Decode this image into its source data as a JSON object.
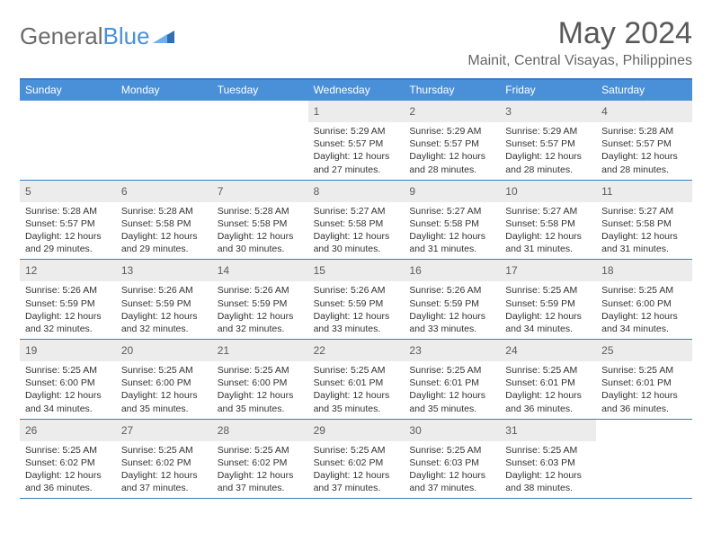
{
  "brand": {
    "part1": "General",
    "part2": "Blue"
  },
  "title": "May 2024",
  "location": "Mainit, Central Visayas, Philippines",
  "colors": {
    "header_bg": "#4a90d9",
    "header_border": "#3b7fbf",
    "daynum_bg": "#ececec",
    "title_color": "#595959",
    "text_color": "#333333"
  },
  "weekdays": [
    "Sunday",
    "Monday",
    "Tuesday",
    "Wednesday",
    "Thursday",
    "Friday",
    "Saturday"
  ],
  "weeks": [
    [
      {
        "n": "",
        "sunrise": "",
        "sunset": "",
        "daylight": ""
      },
      {
        "n": "",
        "sunrise": "",
        "sunset": "",
        "daylight": ""
      },
      {
        "n": "",
        "sunrise": "",
        "sunset": "",
        "daylight": ""
      },
      {
        "n": "1",
        "sunrise": "Sunrise: 5:29 AM",
        "sunset": "Sunset: 5:57 PM",
        "daylight": "Daylight: 12 hours and 27 minutes."
      },
      {
        "n": "2",
        "sunrise": "Sunrise: 5:29 AM",
        "sunset": "Sunset: 5:57 PM",
        "daylight": "Daylight: 12 hours and 28 minutes."
      },
      {
        "n": "3",
        "sunrise": "Sunrise: 5:29 AM",
        "sunset": "Sunset: 5:57 PM",
        "daylight": "Daylight: 12 hours and 28 minutes."
      },
      {
        "n": "4",
        "sunrise": "Sunrise: 5:28 AM",
        "sunset": "Sunset: 5:57 PM",
        "daylight": "Daylight: 12 hours and 28 minutes."
      }
    ],
    [
      {
        "n": "5",
        "sunrise": "Sunrise: 5:28 AM",
        "sunset": "Sunset: 5:57 PM",
        "daylight": "Daylight: 12 hours and 29 minutes."
      },
      {
        "n": "6",
        "sunrise": "Sunrise: 5:28 AM",
        "sunset": "Sunset: 5:58 PM",
        "daylight": "Daylight: 12 hours and 29 minutes."
      },
      {
        "n": "7",
        "sunrise": "Sunrise: 5:28 AM",
        "sunset": "Sunset: 5:58 PM",
        "daylight": "Daylight: 12 hours and 30 minutes."
      },
      {
        "n": "8",
        "sunrise": "Sunrise: 5:27 AM",
        "sunset": "Sunset: 5:58 PM",
        "daylight": "Daylight: 12 hours and 30 minutes."
      },
      {
        "n": "9",
        "sunrise": "Sunrise: 5:27 AM",
        "sunset": "Sunset: 5:58 PM",
        "daylight": "Daylight: 12 hours and 31 minutes."
      },
      {
        "n": "10",
        "sunrise": "Sunrise: 5:27 AM",
        "sunset": "Sunset: 5:58 PM",
        "daylight": "Daylight: 12 hours and 31 minutes."
      },
      {
        "n": "11",
        "sunrise": "Sunrise: 5:27 AM",
        "sunset": "Sunset: 5:58 PM",
        "daylight": "Daylight: 12 hours and 31 minutes."
      }
    ],
    [
      {
        "n": "12",
        "sunrise": "Sunrise: 5:26 AM",
        "sunset": "Sunset: 5:59 PM",
        "daylight": "Daylight: 12 hours and 32 minutes."
      },
      {
        "n": "13",
        "sunrise": "Sunrise: 5:26 AM",
        "sunset": "Sunset: 5:59 PM",
        "daylight": "Daylight: 12 hours and 32 minutes."
      },
      {
        "n": "14",
        "sunrise": "Sunrise: 5:26 AM",
        "sunset": "Sunset: 5:59 PM",
        "daylight": "Daylight: 12 hours and 32 minutes."
      },
      {
        "n": "15",
        "sunrise": "Sunrise: 5:26 AM",
        "sunset": "Sunset: 5:59 PM",
        "daylight": "Daylight: 12 hours and 33 minutes."
      },
      {
        "n": "16",
        "sunrise": "Sunrise: 5:26 AM",
        "sunset": "Sunset: 5:59 PM",
        "daylight": "Daylight: 12 hours and 33 minutes."
      },
      {
        "n": "17",
        "sunrise": "Sunrise: 5:25 AM",
        "sunset": "Sunset: 5:59 PM",
        "daylight": "Daylight: 12 hours and 34 minutes."
      },
      {
        "n": "18",
        "sunrise": "Sunrise: 5:25 AM",
        "sunset": "Sunset: 6:00 PM",
        "daylight": "Daylight: 12 hours and 34 minutes."
      }
    ],
    [
      {
        "n": "19",
        "sunrise": "Sunrise: 5:25 AM",
        "sunset": "Sunset: 6:00 PM",
        "daylight": "Daylight: 12 hours and 34 minutes."
      },
      {
        "n": "20",
        "sunrise": "Sunrise: 5:25 AM",
        "sunset": "Sunset: 6:00 PM",
        "daylight": "Daylight: 12 hours and 35 minutes."
      },
      {
        "n": "21",
        "sunrise": "Sunrise: 5:25 AM",
        "sunset": "Sunset: 6:00 PM",
        "daylight": "Daylight: 12 hours and 35 minutes."
      },
      {
        "n": "22",
        "sunrise": "Sunrise: 5:25 AM",
        "sunset": "Sunset: 6:01 PM",
        "daylight": "Daylight: 12 hours and 35 minutes."
      },
      {
        "n": "23",
        "sunrise": "Sunrise: 5:25 AM",
        "sunset": "Sunset: 6:01 PM",
        "daylight": "Daylight: 12 hours and 35 minutes."
      },
      {
        "n": "24",
        "sunrise": "Sunrise: 5:25 AM",
        "sunset": "Sunset: 6:01 PM",
        "daylight": "Daylight: 12 hours and 36 minutes."
      },
      {
        "n": "25",
        "sunrise": "Sunrise: 5:25 AM",
        "sunset": "Sunset: 6:01 PM",
        "daylight": "Daylight: 12 hours and 36 minutes."
      }
    ],
    [
      {
        "n": "26",
        "sunrise": "Sunrise: 5:25 AM",
        "sunset": "Sunset: 6:02 PM",
        "daylight": "Daylight: 12 hours and 36 minutes."
      },
      {
        "n": "27",
        "sunrise": "Sunrise: 5:25 AM",
        "sunset": "Sunset: 6:02 PM",
        "daylight": "Daylight: 12 hours and 37 minutes."
      },
      {
        "n": "28",
        "sunrise": "Sunrise: 5:25 AM",
        "sunset": "Sunset: 6:02 PM",
        "daylight": "Daylight: 12 hours and 37 minutes."
      },
      {
        "n": "29",
        "sunrise": "Sunrise: 5:25 AM",
        "sunset": "Sunset: 6:02 PM",
        "daylight": "Daylight: 12 hours and 37 minutes."
      },
      {
        "n": "30",
        "sunrise": "Sunrise: 5:25 AM",
        "sunset": "Sunset: 6:03 PM",
        "daylight": "Daylight: 12 hours and 37 minutes."
      },
      {
        "n": "31",
        "sunrise": "Sunrise: 5:25 AM",
        "sunset": "Sunset: 6:03 PM",
        "daylight": "Daylight: 12 hours and 38 minutes."
      },
      {
        "n": "",
        "sunrise": "",
        "sunset": "",
        "daylight": ""
      }
    ]
  ]
}
